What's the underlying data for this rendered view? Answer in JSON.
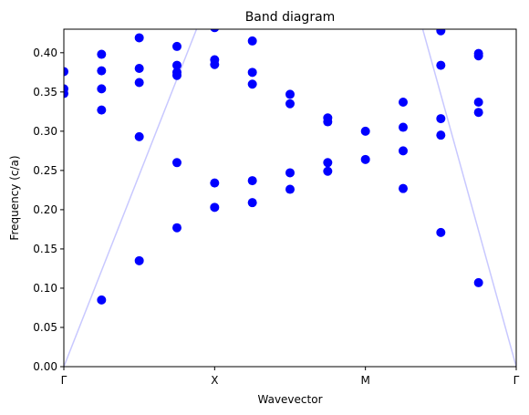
{
  "chart_data": {
    "type": "scatter",
    "title": "Band diagram",
    "xlabel": "Wavevector",
    "ylabel": "Frequency (c/a)",
    "xlim": [
      0,
      12
    ],
    "ylim": [
      0,
      0.43
    ],
    "x_ticks": [
      {
        "value": 0,
        "label": "Γ"
      },
      {
        "value": 4,
        "label": "X"
      },
      {
        "value": 8,
        "label": "M"
      },
      {
        "value": 12,
        "label": "Γ"
      }
    ],
    "y_ticks": [
      {
        "value": 0.0,
        "label": "0.00"
      },
      {
        "value": 0.05,
        "label": "0.05"
      },
      {
        "value": 0.1,
        "label": "0.10"
      },
      {
        "value": 0.15,
        "label": "0.15"
      },
      {
        "value": 0.2,
        "label": "0.20"
      },
      {
        "value": 0.25,
        "label": "0.25"
      },
      {
        "value": 0.3,
        "label": "0.30"
      },
      {
        "value": 0.35,
        "label": "0.35"
      },
      {
        "value": 0.4,
        "label": "0.40"
      }
    ],
    "grid": false,
    "series": [
      {
        "type": "scatter",
        "color": "#0000ff",
        "points": [
          [
            0,
            0.376
          ],
          [
            0,
            0.354
          ],
          [
            0,
            0.348
          ],
          [
            1,
            0.085
          ],
          [
            1,
            0.327
          ],
          [
            1,
            0.354
          ],
          [
            1,
            0.377
          ],
          [
            1,
            0.398
          ],
          [
            2,
            0.135
          ],
          [
            2,
            0.293
          ],
          [
            2,
            0.362
          ],
          [
            2,
            0.38
          ],
          [
            2,
            0.419
          ],
          [
            3,
            0.177
          ],
          [
            3,
            0.26
          ],
          [
            3,
            0.371
          ],
          [
            3,
            0.375
          ],
          [
            3,
            0.384
          ],
          [
            3,
            0.408
          ],
          [
            4,
            0.203
          ],
          [
            4,
            0.234
          ],
          [
            4,
            0.385
          ],
          [
            4,
            0.391
          ],
          [
            4,
            0.432
          ],
          [
            5,
            0.209
          ],
          [
            5,
            0.237
          ],
          [
            5,
            0.36
          ],
          [
            5,
            0.375
          ],
          [
            5,
            0.415
          ],
          [
            6,
            0.226
          ],
          [
            6,
            0.247
          ],
          [
            6,
            0.335
          ],
          [
            6,
            0.347
          ],
          [
            7,
            0.249
          ],
          [
            7,
            0.26
          ],
          [
            7,
            0.312
          ],
          [
            7,
            0.317
          ],
          [
            8,
            0.264
          ],
          [
            8,
            0.3
          ],
          [
            9,
            0.227
          ],
          [
            9,
            0.275
          ],
          [
            9,
            0.305
          ],
          [
            9,
            0.337
          ],
          [
            10,
            0.171
          ],
          [
            10,
            0.295
          ],
          [
            10,
            0.316
          ],
          [
            10,
            0.384
          ],
          [
            10,
            0.428
          ],
          [
            11,
            0.107
          ],
          [
            11,
            0.324
          ],
          [
            11,
            0.337
          ],
          [
            11,
            0.396
          ],
          [
            11,
            0.399
          ]
        ]
      },
      {
        "type": "line",
        "color": "#c8c8ff",
        "points": [
          [
            0,
            0
          ],
          [
            3.52,
            0.43
          ]
        ]
      },
      {
        "type": "line",
        "color": "#c8c8ff",
        "points": [
          [
            9.52,
            0.43
          ],
          [
            12,
            0
          ]
        ]
      }
    ]
  }
}
